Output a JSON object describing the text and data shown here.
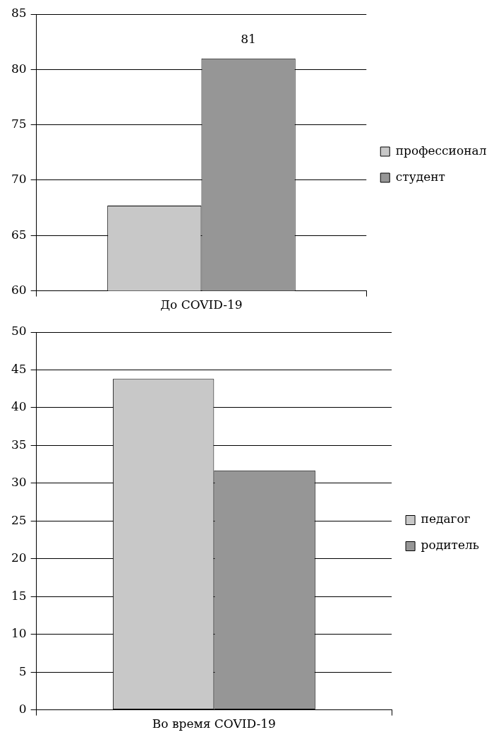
{
  "chart_data": [
    {
      "type": "bar",
      "categories": [
        "До COVID-19"
      ],
      "series": [
        {
          "name": "профессионал",
          "color": "#c8c8c8",
          "values": [
            67.7
          ],
          "value_labels": [
            null
          ]
        },
        {
          "name": "студент",
          "color": "#969696",
          "values": [
            81
          ],
          "value_labels": [
            "81"
          ]
        }
      ],
      "ylim": [
        60,
        85
      ],
      "yticks": [
        60,
        65,
        70,
        75,
        80,
        85
      ],
      "grid": "y",
      "legend": "right"
    },
    {
      "type": "bar",
      "categories": [
        "Во время COVID-19"
      ],
      "series": [
        {
          "name": "педагог",
          "color": "#c8c8c8",
          "values": [
            43.8
          ]
        },
        {
          "name": "родитель",
          "color": "#969696",
          "values": [
            31.7
          ]
        }
      ],
      "ylim": [
        0,
        50
      ],
      "yticks": [
        0,
        5,
        10,
        15,
        20,
        25,
        30,
        35,
        40,
        45,
        50
      ],
      "grid": "y",
      "legend": "right"
    }
  ]
}
